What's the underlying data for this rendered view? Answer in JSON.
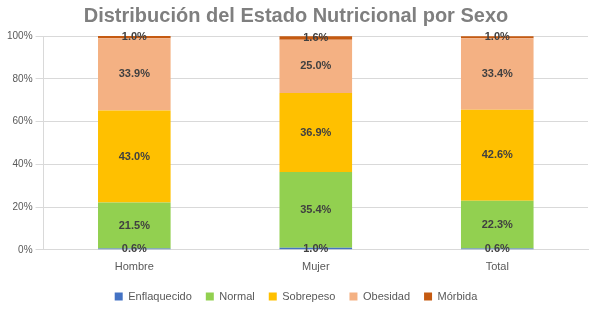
{
  "chart_data": {
    "type": "bar",
    "title": "Distribución del Estado Nutricional por Sexo",
    "categories": [
      "Hombre",
      "Mujer",
      "Total"
    ],
    "stacked": true,
    "data_labels": true,
    "grid": true,
    "legend": "bottom",
    "ylim": [
      0,
      100
    ],
    "yticks": [
      {
        "value": 0,
        "label": "0%"
      },
      {
        "value": 20,
        "label": "20%"
      },
      {
        "value": 40,
        "label": "40%"
      },
      {
        "value": 60,
        "label": "60%"
      },
      {
        "value": 80,
        "label": "80%"
      },
      {
        "value": 100,
        "label": "100%"
      }
    ],
    "series": [
      {
        "name": "Enflaquecido",
        "color": "#4472c4",
        "values": [
          0.6,
          1.0,
          0.6
        ],
        "value_labels": [
          "0.6%",
          "1.0%",
          "0.6%"
        ]
      },
      {
        "name": "Normal",
        "color": "#92d050",
        "values": [
          21.5,
          35.4,
          22.3
        ],
        "value_labels": [
          "21.5%",
          "35.4%",
          "22.3%"
        ]
      },
      {
        "name": "Sobrepeso",
        "color": "#ffc000",
        "values": [
          43.0,
          36.9,
          42.6
        ],
        "value_labels": [
          "43.0%",
          "36.9%",
          "42.6%"
        ]
      },
      {
        "name": "Obesidad",
        "color": "#f4b183",
        "values": [
          33.9,
          25.0,
          33.4
        ],
        "value_labels": [
          "33.9%",
          "25.0%",
          "33.4%"
        ]
      },
      {
        "name": "Mórbida",
        "color": "#c55a11",
        "values": [
          1.0,
          1.6,
          1.0
        ],
        "value_labels": [
          "1.0%",
          "1.6%",
          "1.0%"
        ]
      }
    ]
  }
}
